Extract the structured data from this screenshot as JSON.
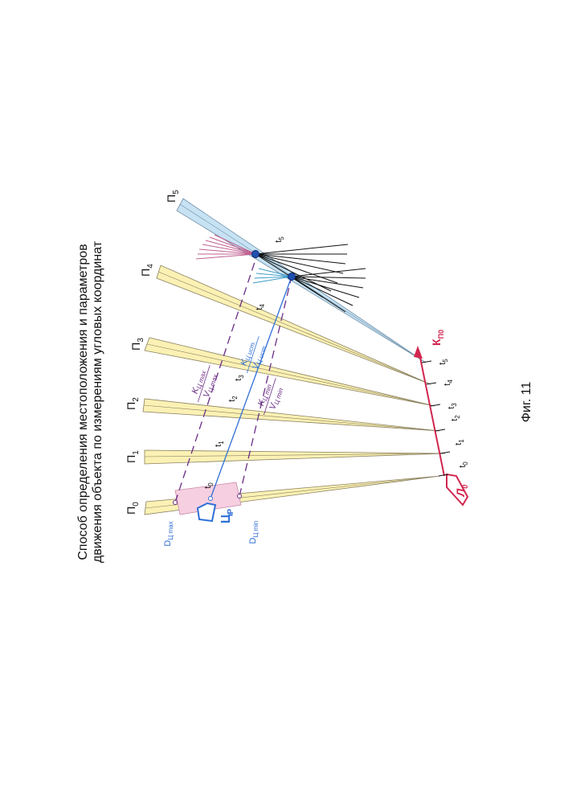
{
  "title_line1": "Способ определения местоположения и параметров",
  "title_line2": "движения объекта по измерениям угловых координат",
  "figure_caption": "Фиг. 11",
  "bearings": [
    {
      "base": "П",
      "sub": "0"
    },
    {
      "base": "П",
      "sub": "1"
    },
    {
      "base": "П",
      "sub": "2"
    },
    {
      "base": "П",
      "sub": "3"
    },
    {
      "base": "П",
      "sub": "4"
    },
    {
      "base": "П",
      "sub": "5"
    }
  ],
  "observer_track": {
    "course_base": "К",
    "course_sub": "П0",
    "ship_base": "Л",
    "ship_sub": "0",
    "times": [
      {
        "base": "t",
        "sub": "0"
      },
      {
        "base": "t",
        "sub": "1"
      },
      {
        "base": "t",
        "sub": "2"
      },
      {
        "base": "t",
        "sub": "3"
      },
      {
        "base": "t",
        "sub": "4"
      },
      {
        "base": "t",
        "sub": "5"
      }
    ]
  },
  "target": {
    "ship_base": "Ц",
    "ship_sub": "Р",
    "times": [
      {
        "base": "t",
        "sub": "0"
      },
      {
        "base": "t",
        "sub": "1"
      },
      {
        "base": "t",
        "sub": "2"
      },
      {
        "base": "t",
        "sub": "3"
      },
      {
        "base": "t",
        "sub": "4"
      },
      {
        "base": "t",
        "sub": "5"
      }
    ],
    "d_max": {
      "base": "D",
      "sub": "Ц max"
    },
    "d_min": {
      "base": "D",
      "sub": "Ц min"
    },
    "k_max": {
      "base": "K",
      "sub": "Ц max"
    },
    "v_max": {
      "base": "V",
      "sub": "Ц max"
    },
    "k_ist": {
      "base": "K",
      "sub": "Ц ист."
    },
    "v_ist": {
      "base": "V",
      "sub": "Ц ист."
    },
    "k_min": {
      "base": "K",
      "sub": "Ц min"
    },
    "v_min": {
      "base": "V",
      "sub": "Ц min"
    }
  },
  "colors": {
    "bearing_fill": "#fbf1b4",
    "bearing_stroke": "#8a8060",
    "last_bearing_fill": "#c6e2f3",
    "observer": "#d2264f",
    "target": "#2f6fd6",
    "bounds": "#6a2d86",
    "area_fill": "#f6cfe0"
  }
}
